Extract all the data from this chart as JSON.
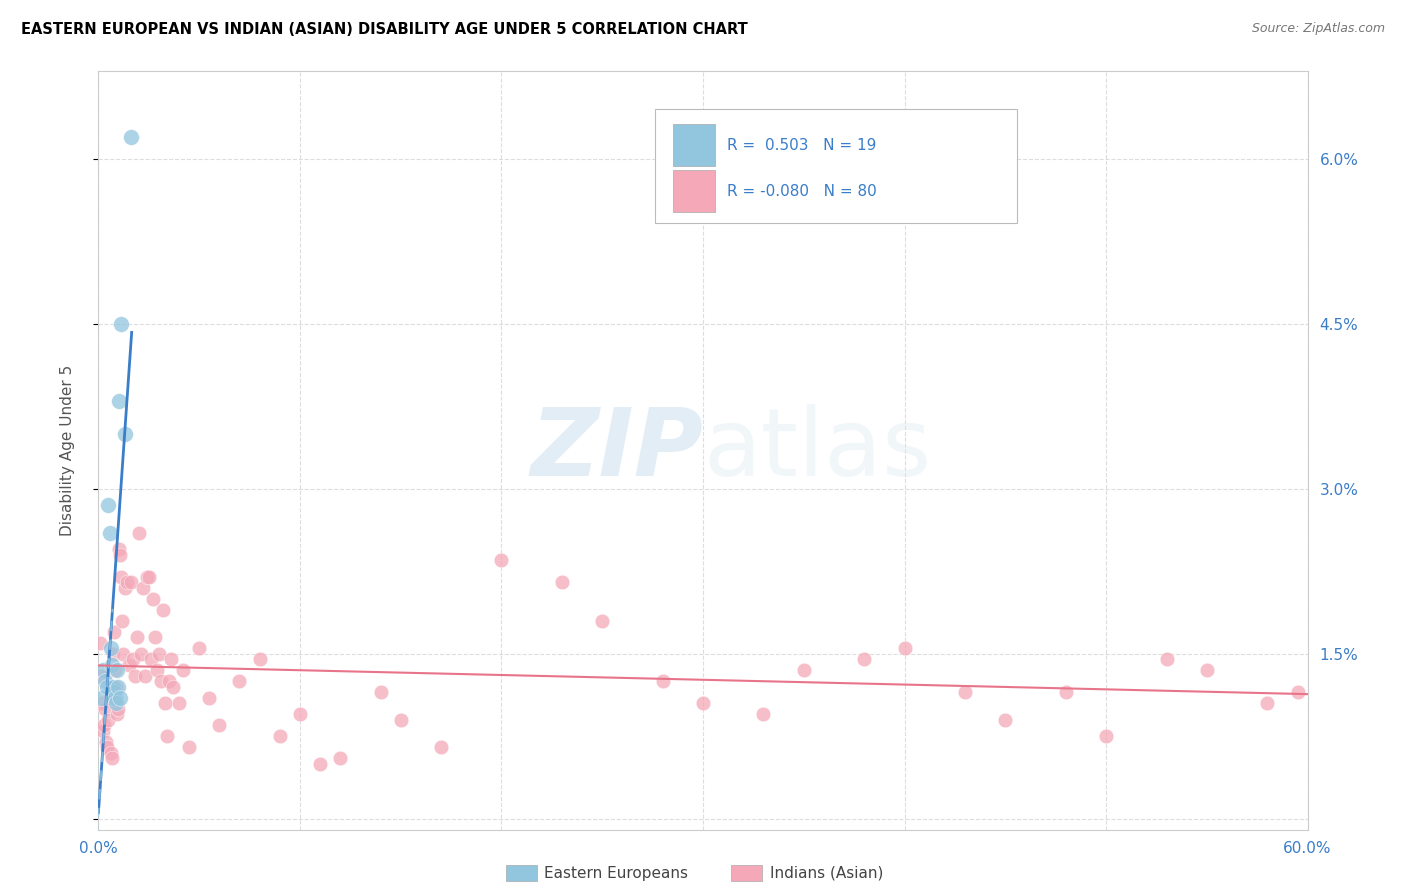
{
  "title": "EASTERN EUROPEAN VS INDIAN (ASIAN) DISABILITY AGE UNDER 5 CORRELATION CHART",
  "source": "Source: ZipAtlas.com",
  "ylabel": "Disability Age Under 5",
  "watermark_zip": "ZIP",
  "watermark_atlas": "atlas",
  "legend_blue_r": "0.503",
  "legend_blue_n": "19",
  "legend_pink_r": "-0.080",
  "legend_pink_n": "80",
  "legend_label_blue": "Eastern Europeans",
  "legend_label_pink": "Indians (Asian)",
  "blue_color": "#92C5DE",
  "pink_color": "#F4A8B8",
  "blue_trend_color": "#3A7DC9",
  "pink_trend_color": "#E8748A",
  "blue_dash_color": "#92C5DE",
  "scatter_alpha": 0.75,
  "blue_x": [
    0.15,
    0.25,
    0.35,
    0.45,
    0.5,
    0.55,
    0.6,
    0.65,
    0.7,
    0.75,
    0.8,
    0.85,
    0.9,
    0.95,
    1.0,
    1.05,
    1.1,
    1.3,
    1.6
  ],
  "blue_y": [
    1.1,
    1.35,
    1.25,
    1.2,
    2.85,
    2.6,
    1.55,
    1.4,
    1.2,
    1.15,
    1.1,
    1.05,
    1.35,
    1.2,
    3.8,
    1.1,
    4.5,
    3.5,
    6.2
  ],
  "pink_x": [
    0.1,
    0.15,
    0.2,
    0.25,
    0.3,
    0.35,
    0.4,
    0.45,
    0.5,
    0.55,
    0.6,
    0.65,
    0.7,
    0.75,
    0.8,
    0.85,
    0.9,
    0.95,
    1.0,
    1.05,
    1.1,
    1.15,
    1.2,
    1.3,
    1.4,
    1.5,
    1.6,
    1.7,
    1.8,
    1.9,
    2.0,
    2.1,
    2.2,
    2.3,
    2.4,
    2.5,
    2.6,
    2.7,
    2.8,
    2.9,
    3.0,
    3.1,
    3.2,
    3.3,
    3.4,
    3.5,
    3.6,
    3.7,
    4.0,
    4.2,
    4.5,
    5.0,
    5.5,
    6.0,
    7.0,
    8.0,
    9.0,
    10.0,
    11.0,
    12.0,
    14.0,
    15.0,
    17.0,
    20.0,
    23.0,
    25.0,
    28.0,
    30.0,
    33.0,
    35.0,
    38.0,
    40.0,
    43.0,
    45.0,
    48.0,
    50.0,
    53.0,
    55.0,
    58.0,
    59.5
  ],
  "pink_y": [
    1.6,
    1.3,
    1.05,
    0.8,
    0.85,
    1.0,
    0.7,
    0.65,
    0.9,
    1.1,
    0.6,
    0.55,
    1.5,
    1.7,
    1.35,
    1.2,
    0.95,
    1.0,
    2.45,
    2.4,
    2.2,
    1.8,
    1.5,
    2.1,
    2.15,
    1.4,
    2.15,
    1.45,
    1.3,
    1.65,
    2.6,
    1.5,
    2.1,
    1.3,
    2.2,
    2.2,
    1.45,
    2.0,
    1.65,
    1.35,
    1.5,
    1.25,
    1.9,
    1.05,
    0.75,
    1.25,
    1.45,
    1.2,
    1.05,
    1.35,
    0.65,
    1.55,
    1.1,
    0.85,
    1.25,
    1.45,
    0.75,
    0.95,
    0.5,
    0.55,
    1.15,
    0.9,
    0.65,
    2.35,
    2.15,
    1.8,
    1.25,
    1.05,
    0.95,
    1.35,
    1.45,
    1.55,
    1.15,
    0.9,
    1.15,
    0.75,
    1.45,
    1.35,
    1.05,
    1.15
  ],
  "xlim": [
    0,
    60
  ],
  "ylim": [
    -0.1,
    6.8
  ],
  "ytick_positions": [
    0,
    1.5,
    3.0,
    4.5,
    6.0
  ],
  "xtick_positions": [
    0,
    10,
    20,
    30,
    40,
    50,
    60
  ],
  "figsize": [
    14.06,
    8.92
  ],
  "dpi": 100
}
